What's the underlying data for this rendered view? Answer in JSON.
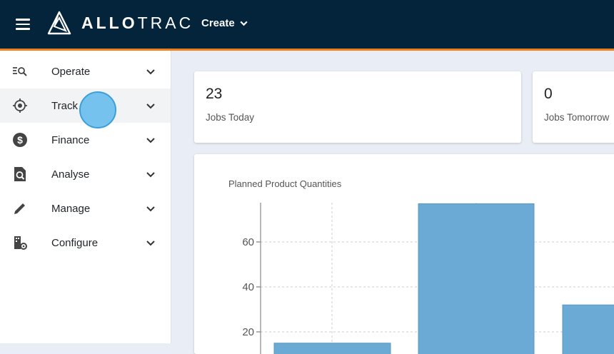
{
  "header": {
    "logo_text_bold": "ALLO",
    "logo_text_light": "TRAC",
    "create_label": "Create",
    "accent_color": "#f07f1a",
    "bg_color": "#03243b"
  },
  "sidebar": {
    "items": [
      {
        "label": "Operate",
        "icon": "operate-search-list-icon"
      },
      {
        "label": "Track",
        "icon": "crosshair-icon",
        "active": true
      },
      {
        "label": "Finance",
        "icon": "dollar-coin-icon"
      },
      {
        "label": "Analyse",
        "icon": "document-search-icon"
      },
      {
        "label": "Manage",
        "icon": "pencil-icon"
      },
      {
        "label": "Configure",
        "icon": "building-gear-icon"
      }
    ]
  },
  "stats": [
    {
      "value": "23",
      "label": "Jobs Today"
    },
    {
      "value": "0",
      "label": "Jobs Tomorrow"
    }
  ],
  "chart_data": {
    "type": "bar",
    "title": "Planned Product Quantities",
    "xlabel": "",
    "ylabel": "",
    "y_ticks": [
      20,
      40,
      60
    ],
    "ylim": [
      0,
      78
    ],
    "values": [
      15,
      77,
      32
    ],
    "bar_color": "#6aaad4",
    "grid": true
  }
}
